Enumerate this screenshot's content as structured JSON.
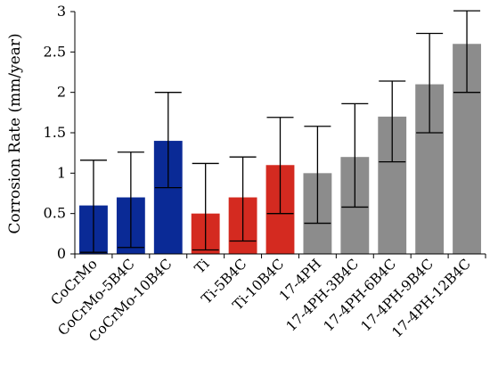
{
  "chart_data": {
    "type": "bar",
    "title": "",
    "xlabel": "",
    "ylabel": "Corrosion Rate (mm/year)",
    "ylim": [
      0,
      3
    ],
    "yticks": [
      "0",
      "0.5",
      "1",
      "1.5",
      "2",
      "2.5",
      "3"
    ],
    "grid": false,
    "legend": "none",
    "categories": [
      "CoCrMo",
      "CoCrMo-5B4C",
      "CoCrMo-10B4C",
      "Ti",
      "Ti-5B4C",
      "Ti-10B4C",
      "17-4PH",
      "17-4PH-3B4C",
      "17-4PH-6B4C",
      "17-4PH-9B4C",
      "17-4PH-12B4C"
    ],
    "values": [
      0.6,
      0.7,
      1.4,
      0.5,
      0.7,
      1.1,
      1.0,
      1.2,
      1.7,
      2.1,
      2.6
    ],
    "error_low": [
      0.02,
      0.08,
      0.82,
      0.05,
      0.16,
      0.5,
      0.38,
      0.58,
      1.14,
      1.5,
      2.0
    ],
    "error_high": [
      1.16,
      1.26,
      2.0,
      1.12,
      1.2,
      1.69,
      1.58,
      1.86,
      2.14,
      2.73,
      3.01
    ],
    "bar_colors": [
      "#0a2a96",
      "#0a2a96",
      "#0a2a96",
      "#d42a20",
      "#d42a20",
      "#d42a20",
      "#8c8c8c",
      "#8c8c8c",
      "#8c8c8c",
      "#8c8c8c",
      "#8c8c8c"
    ],
    "axis_color": "#000000"
  }
}
